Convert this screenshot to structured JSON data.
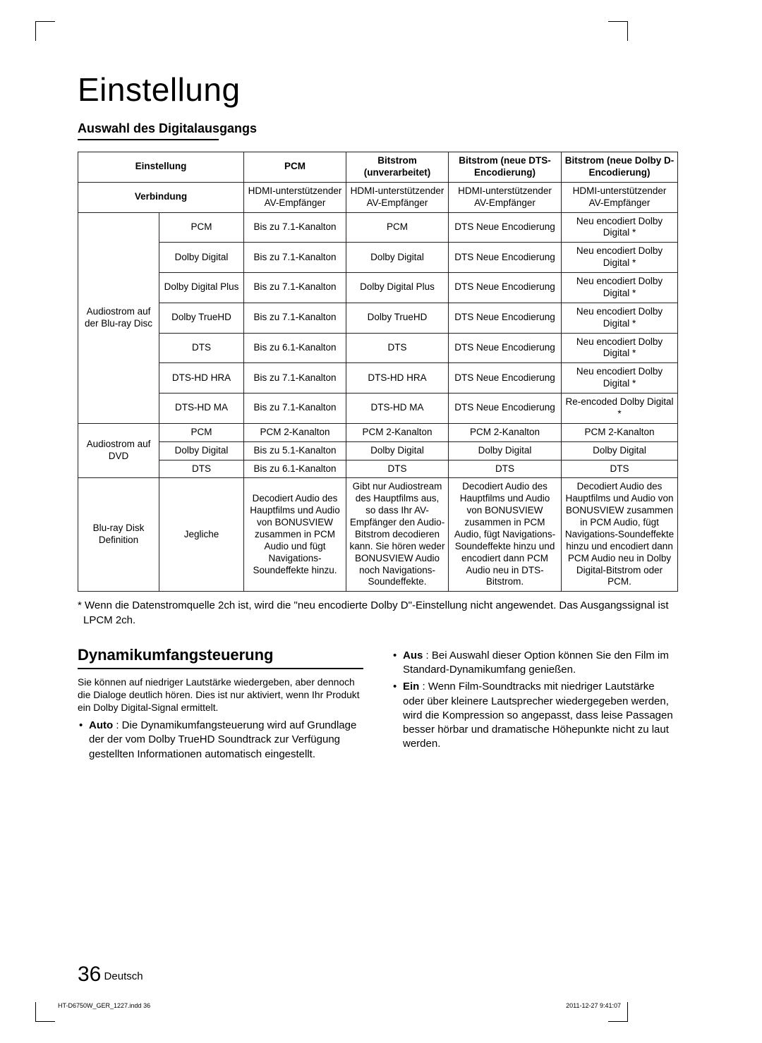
{
  "page": {
    "title": "Einstellung",
    "subheading": "Auswahl des Digitalausgangs",
    "number": "36",
    "lang": "Deutsch"
  },
  "table": {
    "header": {
      "setting": "Einstellung",
      "pcm": "PCM",
      "bitstream_un": "Bitstrom (unverarbeitet)",
      "bitstream_dts": "Bitstrom (neue DTS-Encodierung)",
      "bitstream_dolby": "Bitstrom (neue Dolby D-Encodierung)",
      "connection": "Verbindung",
      "hdmi_recv": "HDMI-unterstützender AV-Empfänger"
    },
    "group_bluray": "Audiostrom auf der Blu-ray Disc",
    "group_dvd": "Audiostrom auf DVD",
    "group_def": "Blu-ray Disk Definition",
    "bluray_rows": [
      {
        "fmt": "PCM",
        "pcm": "Bis zu 7.1-Kanalton",
        "un": "PCM",
        "dts": "DTS Neue Encodierung",
        "dolby": "Neu encodiert Dolby Digital *"
      },
      {
        "fmt": "Dolby Digital",
        "pcm": "Bis zu 7.1-Kanalton",
        "un": "Dolby Digital",
        "dts": "DTS Neue Encodierung",
        "dolby": "Neu encodiert Dolby Digital *"
      },
      {
        "fmt": "Dolby Digital Plus",
        "pcm": "Bis zu 7.1-Kanalton",
        "un": "Dolby Digital Plus",
        "dts": "DTS Neue Encodierung",
        "dolby": "Neu encodiert Dolby Digital *"
      },
      {
        "fmt": "Dolby TrueHD",
        "pcm": "Bis zu 7.1-Kanalton",
        "un": "Dolby TrueHD",
        "dts": "DTS Neue Encodierung",
        "dolby": "Neu encodiert Dolby Digital *"
      },
      {
        "fmt": "DTS",
        "pcm": "Bis zu 6.1-Kanalton",
        "un": "DTS",
        "dts": "DTS Neue Encodierung",
        "dolby": "Neu encodiert Dolby Digital *"
      },
      {
        "fmt": "DTS-HD HRA",
        "pcm": "Bis zu 7.1-Kanalton",
        "un": "DTS-HD HRA",
        "dts": "DTS Neue Encodierung",
        "dolby": "Neu encodiert Dolby Digital *"
      },
      {
        "fmt": "DTS-HD MA",
        "pcm": "Bis zu 7.1-Kanalton",
        "un": "DTS-HD MA",
        "dts": "DTS Neue Encodierung",
        "dolby": "Re-encoded Dolby Digital *"
      }
    ],
    "dvd_rows": [
      {
        "fmt": "PCM",
        "pcm": "PCM 2-Kanalton",
        "un": "PCM 2-Kanalton",
        "dts": "PCM 2-Kanalton",
        "dolby": "PCM 2-Kanalton"
      },
      {
        "fmt": "Dolby Digital",
        "pcm": "Bis zu 5.1-Kanalton",
        "un": "Dolby Digital",
        "dts": "Dolby Digital",
        "dolby": "Dolby Digital"
      },
      {
        "fmt": "DTS",
        "pcm": "Bis zu 6.1-Kanalton",
        "un": "DTS",
        "dts": "DTS",
        "dolby": "DTS"
      }
    ],
    "def_row": {
      "fmt": "Jegliche",
      "pcm": "Decodiert Audio des Hauptfilms und Audio von BONUSVIEW zusammen in PCM Audio und fügt Navigations-Soundeffekte hinzu.",
      "un": "Gibt nur Audiostream des Hauptfilms aus, so dass Ihr AV-Empfänger den Audio-Bitstrom decodieren kann. Sie hören weder BONUSVIEW Audio noch Navigations-Soundeffekte.",
      "dts": "Decodiert Audio des Hauptfilms und Audio von BONUSVIEW zusammen in PCM Audio, fügt Navigations-Soundeffekte hinzu und encodiert dann PCM Audio neu in DTS-Bitstrom.",
      "dolby": "Decodiert Audio des Hauptfilms und Audio von BONUSVIEW zusammen in PCM Audio, fügt Navigations-Soundeffekte hinzu und encodiert dann PCM Audio neu in Dolby Digital-Bitstrom oder PCM."
    }
  },
  "footnote": "* Wenn die Datenstromquelle 2ch ist, wird die \"neu encodierte Dolby D\"-Einstellung nicht angewendet. Das Ausgangssignal ist LPCM 2ch.",
  "drc": {
    "heading": "Dynamikumfangsteuerung",
    "intro": "Sie können auf niedriger Lautstärke wiedergeben, aber dennoch die Dialoge deutlich hören. Dies ist nur aktiviert, wenn Ihr Produkt ein Dolby Digital-Signal ermittelt.",
    "auto_label": "Auto",
    "auto_text": " : Die Dynamikumfangsteuerung wird auf Grundlage der der vom Dolby TrueHD Soundtrack zur Verfügung gestellten Informationen automatisch eingestellt.",
    "aus_label": "Aus",
    "aus_text": " : Bei Auswahl dieser Option können Sie den Film im Standard-Dynamikumfang genießen.",
    "ein_label": "Ein",
    "ein_text": " : Wenn Film-Soundtracks mit niedriger Lautstärke oder über kleinere Lautsprecher wiedergegeben werden, wird die Kompression so angepasst, dass leise Passagen besser hörbar und dramatische Höhepunkte nicht zu laut werden."
  },
  "footer": {
    "left": "HT-D6750W_GER_1227.indd   36",
    "right": "2011-12-27    9:41:07"
  }
}
